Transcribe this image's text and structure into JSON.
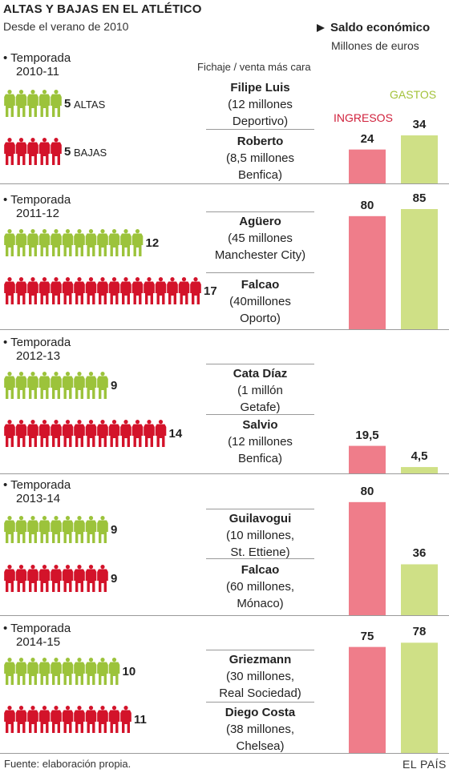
{
  "title": "ALTAS Y BAJAS EN EL ATLÉTICO",
  "subtitle": "Desde el verano de 2010",
  "saldo": {
    "title": "Saldo económico",
    "subtitle": "Millones de euros"
  },
  "fichaje_header": "Fichaje / venta más cara",
  "labels": {
    "altas": "ALTAS",
    "bajas": "BAJAS",
    "ingresos": "INGRESOS",
    "gastos": "GASTOS"
  },
  "colors": {
    "altas": "#9cc33b",
    "bajas": "#d3132a",
    "ingresos": "#ef7d8a",
    "gastos": "#cfe086"
  },
  "seasons": [
    {
      "label": "• Temporada",
      "years": "2010-11",
      "altas": 5,
      "bajas": 5,
      "fichaje": {
        "name": "Filipe Luis",
        "line1": "(12 millones",
        "line2": "Deportivo)"
      },
      "venta": {
        "name": "Roberto",
        "line1": "(8,5 millones",
        "line2": "Benfica)"
      },
      "ingresos": "24",
      "gastos": "34"
    },
    {
      "label": "• Temporada",
      "years": "2011-12",
      "altas": 12,
      "bajas": 17,
      "fichaje": {
        "name": "Agüero",
        "line1": "(45 millones",
        "line2": "Manchester City)"
      },
      "venta": {
        "name": "Falcao",
        "line1": "(40millones",
        "line2": "Oporto)"
      },
      "ingresos": "80",
      "gastos": "85"
    },
    {
      "label": "• Temporada",
      "years": "2012-13",
      "altas": 9,
      "bajas": 14,
      "fichaje": {
        "name": "Cata Díaz",
        "line1": "(1 millón",
        "line2": "Getafe)"
      },
      "venta": {
        "name": "Salvio",
        "line1": "(12 millones",
        "line2": "Benfica)"
      },
      "ingresos": "19,5",
      "gastos": "4,5"
    },
    {
      "label": "• Temporada",
      "years": "2013-14",
      "altas": 9,
      "bajas": 9,
      "fichaje": {
        "name": "Guilavogui",
        "line1": "(10 millones,",
        "line2": "St. Ettiene)"
      },
      "venta": {
        "name": "Falcao",
        "line1": "(60 millones,",
        "line2": "Mónaco)"
      },
      "ingresos": "80",
      "gastos": "36"
    },
    {
      "label": "• Temporada",
      "years": "2014-15",
      "altas": 10,
      "bajas": 11,
      "fichaje": {
        "name": "Griezmann",
        "line1": "(30 millones,",
        "line2": "Real Sociedad)"
      },
      "venta": {
        "name": "Diego Costa",
        "line1": "(38 millones,",
        "line2": "Chelsea)"
      },
      "ingresos": "75",
      "gastos": "78"
    }
  ],
  "chart_data": {
    "type": "bar",
    "categories": [
      "2010-11",
      "2011-12",
      "2012-13",
      "2013-14",
      "2014-15"
    ],
    "series": [
      {
        "name": "INGRESOS",
        "values": [
          24,
          80,
          19.5,
          80,
          75
        ]
      },
      {
        "name": "GASTOS",
        "values": [
          34,
          85,
          4.5,
          36,
          78
        ]
      }
    ],
    "title": "Saldo económico",
    "ylabel": "Millones de euros"
  },
  "footer": "Fuente: elaboración propia.",
  "brand": "EL PAÍS"
}
